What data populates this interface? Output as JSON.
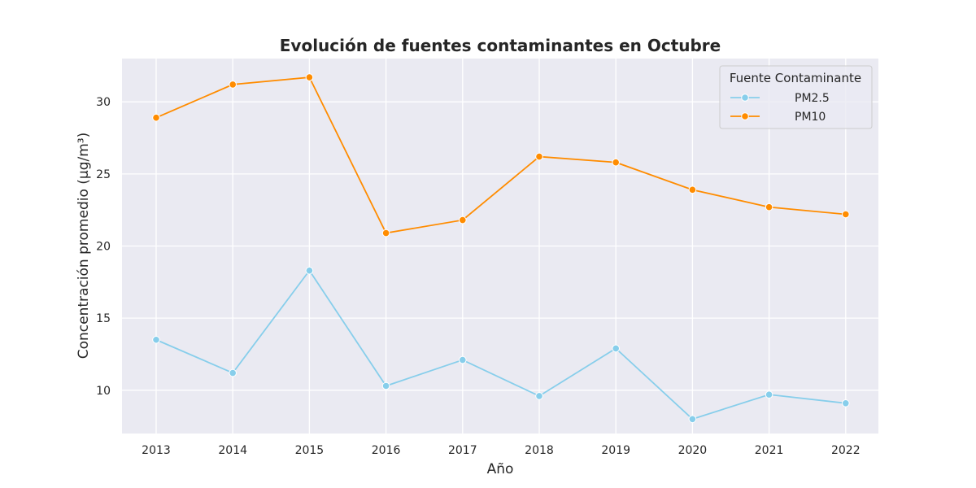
{
  "chart_data": {
    "type": "line",
    "title": "Evolución de fuentes contaminantes en Octubre",
    "xlabel": "Año",
    "ylabel": "Concentración promedio (µg/m³)",
    "x": [
      "2013",
      "2014",
      "2015",
      "2016",
      "2017",
      "2018",
      "2019",
      "2020",
      "2021",
      "2022"
    ],
    "ylim": [
      7,
      33
    ],
    "yticks": [
      10,
      15,
      20,
      25,
      30
    ],
    "grid": true,
    "legend": {
      "title": "Fuente Contaminante",
      "position": "top-right"
    },
    "series": [
      {
        "name": "PM2.5",
        "color": "#87ceeb",
        "values": [
          13.5,
          11.2,
          18.3,
          10.3,
          12.1,
          9.6,
          12.9,
          8.0,
          9.7,
          9.1
        ]
      },
      {
        "name": "PM10",
        "color": "#ff8c00",
        "values": [
          28.9,
          31.2,
          31.7,
          20.9,
          21.8,
          26.2,
          25.8,
          23.9,
          22.7,
          22.2
        ]
      }
    ]
  }
}
